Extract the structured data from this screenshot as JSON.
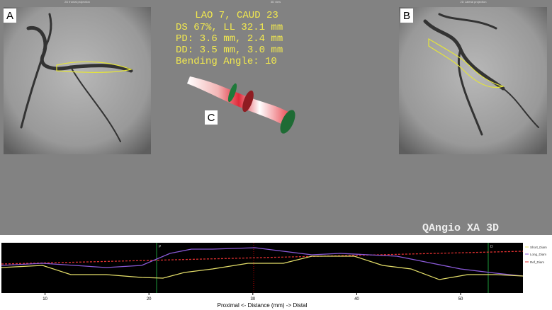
{
  "header": {
    "left_caption": "2D frontal projection",
    "center_caption": "3D view",
    "right_caption": "2D Lateral projection"
  },
  "panels": {
    "a": "A",
    "b": "B",
    "c": "C"
  },
  "overlay": {
    "lines": [
      "LAO 7, CAUD 23",
      "DS 67%, LL 32.1 mm",
      "PD: 3.6 mm, 2.4 mm",
      "DD: 3.5 mm, 3.0 mm",
      "Bending Angle: 10"
    ]
  },
  "brand": "QAngio XA 3D",
  "graph": {
    "xlim": [
      5.8,
      56
    ],
    "xticks": [
      10,
      20,
      30,
      40,
      50
    ],
    "xlabel": "Proximal <- Distance (mm) -> Distal",
    "markers": [
      "P",
      "D"
    ],
    "legend": [
      "Short_Diam",
      "Long_Diam",
      "Ref_Diam"
    ]
  }
}
